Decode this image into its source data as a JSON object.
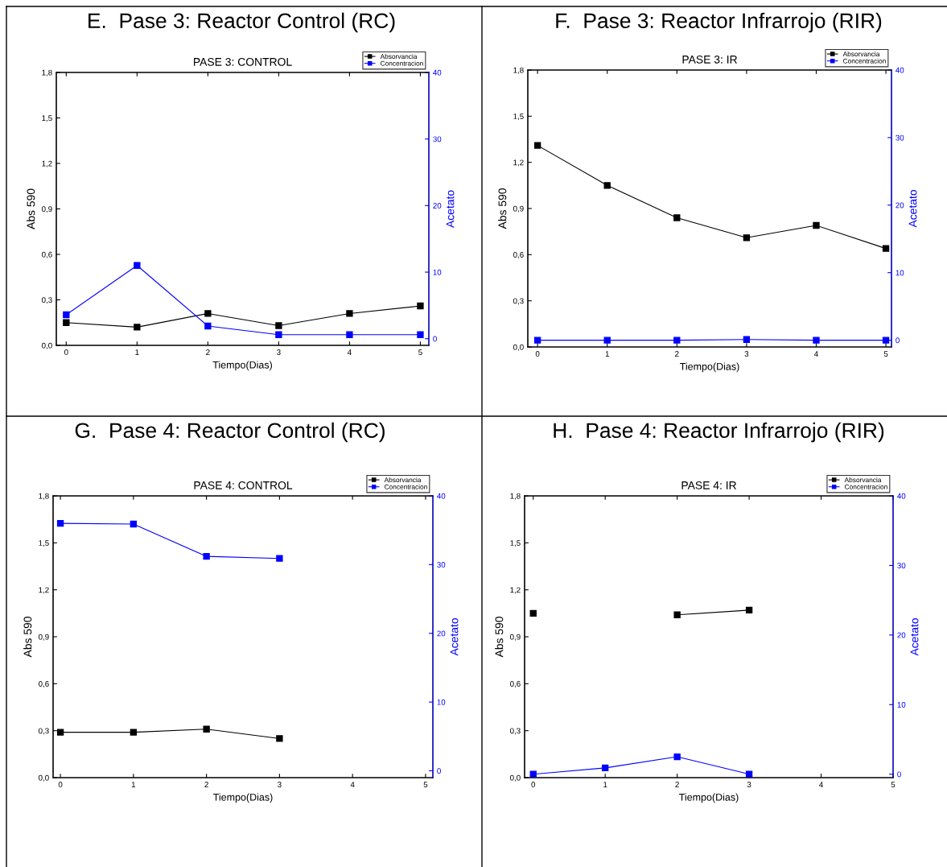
{
  "chart_data": [
    {
      "type": "line",
      "title": "PASE 3: CONTROL",
      "annotations": [
        "E.  Pase 3: Reactor Control (RC)"
      ],
      "xlabel": "Tiempo(Dias)",
      "ylabel": "Abs 590",
      "y2label": "Acetato",
      "x": [
        0,
        1,
        2,
        3,
        4,
        5
      ],
      "series": [
        {
          "name": "Absorvancia",
          "color": "#000000",
          "values": [
            0.15,
            0.12,
            0.21,
            0.13,
            0.21,
            0.26
          ]
        },
        {
          "name": "Concentracion",
          "color": "#0000ff",
          "axis": "y2",
          "values": [
            3.6,
            11.0,
            1.9,
            0.6,
            0.6,
            0.6
          ]
        }
      ],
      "xlim": [
        -0.14,
        5.12
      ],
      "xticks": [
        0,
        1,
        2,
        3,
        4,
        5
      ],
      "ylim": [
        0,
        1.8
      ],
      "yticks": [
        {
          "value": 0,
          "label": "0,0"
        },
        {
          "value": 0.3,
          "label": "0,3"
        },
        {
          "value": 0.6,
          "label": "0,6"
        },
        {
          "value": 0.9,
          "label": "0,9"
        },
        {
          "value": 1.2,
          "label": "1,2"
        },
        {
          "value": 1.5,
          "label": "1,5"
        },
        {
          "value": 1.8,
          "label": "1,8"
        }
      ],
      "y2lim": [
        -1,
        40
      ],
      "y2ticks": [
        0,
        10,
        20,
        30,
        40
      ],
      "marker": "square",
      "line_style": "solid",
      "grid": false,
      "legend": "top right"
    },
    {
      "type": "line",
      "title": "PASE 3: IR",
      "annotations": [
        "F.  Pase 3: Reactor Infrarrojo (RIR)"
      ],
      "xlabel": "Tiempo(Dias)",
      "ylabel": "Abs 590",
      "y2label": "Acetato",
      "x": [
        0,
        1,
        2,
        3,
        4,
        5
      ],
      "series": [
        {
          "name": "Absorvancia",
          "color": "#000000",
          "values": [
            1.31,
            1.05,
            0.84,
            0.71,
            0.79,
            0.64
          ]
        },
        {
          "name": "Concentracion",
          "color": "#0000ff",
          "axis": "y2",
          "values": [
            0,
            0,
            0,
            0.1,
            0,
            0
          ]
        }
      ],
      "xlim": [
        -0.14,
        5.08
      ],
      "xticks": [
        0,
        1,
        2,
        3,
        4,
        5
      ],
      "ylim": [
        0,
        1.8
      ],
      "yticks": [
        {
          "value": 0,
          "label": "0,0"
        },
        {
          "value": 0.3,
          "label": "0,3"
        },
        {
          "value": 0.6,
          "label": "0,6"
        },
        {
          "value": 0.9,
          "label": "0,9"
        },
        {
          "value": 1.2,
          "label": "1,2"
        },
        {
          "value": 1.5,
          "label": "1,5"
        },
        {
          "value": 1.8,
          "label": "1,8"
        }
      ],
      "y2lim": [
        -1,
        40
      ],
      "y2ticks": [
        0,
        10,
        20,
        30,
        40
      ],
      "marker": "square",
      "line_style": "solid",
      "grid": false,
      "legend": "top right"
    },
    {
      "type": "line",
      "title": "PASE 4: CONTROL",
      "annotations": [
        "G.  Pase 4: Reactor Control (RC)"
      ],
      "xlabel": "Tiempo(Dias)",
      "ylabel": "Abs 590",
      "y2label": "Acetato",
      "x": [
        0,
        1,
        2,
        3
      ],
      "series": [
        {
          "name": "Absorvancia",
          "color": "#000000",
          "values": [
            0.29,
            0.29,
            0.31,
            0.25
          ]
        },
        {
          "name": "Concentracion",
          "color": "#0000ff",
          "axis": "y2",
          "values": [
            36.0,
            35.9,
            31.2,
            30.9
          ]
        }
      ],
      "xlim": [
        -0.1,
        5.1
      ],
      "xticks": [
        0,
        1,
        2,
        3,
        4,
        5
      ],
      "ylim": [
        0,
        1.8
      ],
      "yticks": [
        {
          "value": 0,
          "label": "0,0"
        },
        {
          "value": 0.3,
          "label": "0,3"
        },
        {
          "value": 0.6,
          "label": "0,6"
        },
        {
          "value": 0.9,
          "label": "0,9"
        },
        {
          "value": 1.2,
          "label": "1,2"
        },
        {
          "value": 1.5,
          "label": "1,5"
        },
        {
          "value": 1.8,
          "label": "1,8"
        }
      ],
      "y2lim": [
        -1,
        40
      ],
      "y2ticks": [
        0,
        10,
        20,
        30,
        40
      ],
      "marker": "square",
      "line_style": "solid",
      "grid": false,
      "legend": "top right"
    },
    {
      "type": "line",
      "title": "PASE 4: IR",
      "annotations": [
        "H.  Pase 4: Reactor Infrarrojo (RIR)"
      ],
      "xlabel": "Tiempo(Dias)",
      "ylabel": "Abs 590",
      "y2label": "Acetato",
      "x": [
        0,
        1,
        2,
        3
      ],
      "series": [
        {
          "name": "Absorvancia",
          "color": "#000000",
          "values": [
            1.05,
            null,
            1.04,
            1.07
          ]
        },
        {
          "name": "Concentracion",
          "color": "#0000ff",
          "axis": "y2",
          "values": [
            0,
            0.9,
            2.5,
            0
          ]
        }
      ],
      "xlim": [
        -0.12,
        5.0
      ],
      "xticks": [
        0,
        1,
        2,
        3,
        4,
        5
      ],
      "ylim": [
        0,
        1.8
      ],
      "yticks": [
        {
          "value": 0,
          "label": "0,0"
        },
        {
          "value": 0.3,
          "label": "0,3"
        },
        {
          "value": 0.6,
          "label": "0,6"
        },
        {
          "value": 0.9,
          "label": "0,9"
        },
        {
          "value": 1.2,
          "label": "1,2"
        },
        {
          "value": 1.5,
          "label": "1,5"
        },
        {
          "value": 1.8,
          "label": "1,8"
        }
      ],
      "y2lim": [
        -0.5,
        40
      ],
      "y2ticks": [
        0,
        10,
        20,
        30,
        40
      ],
      "marker": "square",
      "line_style": "solid",
      "grid": false,
      "legend": "top right"
    }
  ]
}
